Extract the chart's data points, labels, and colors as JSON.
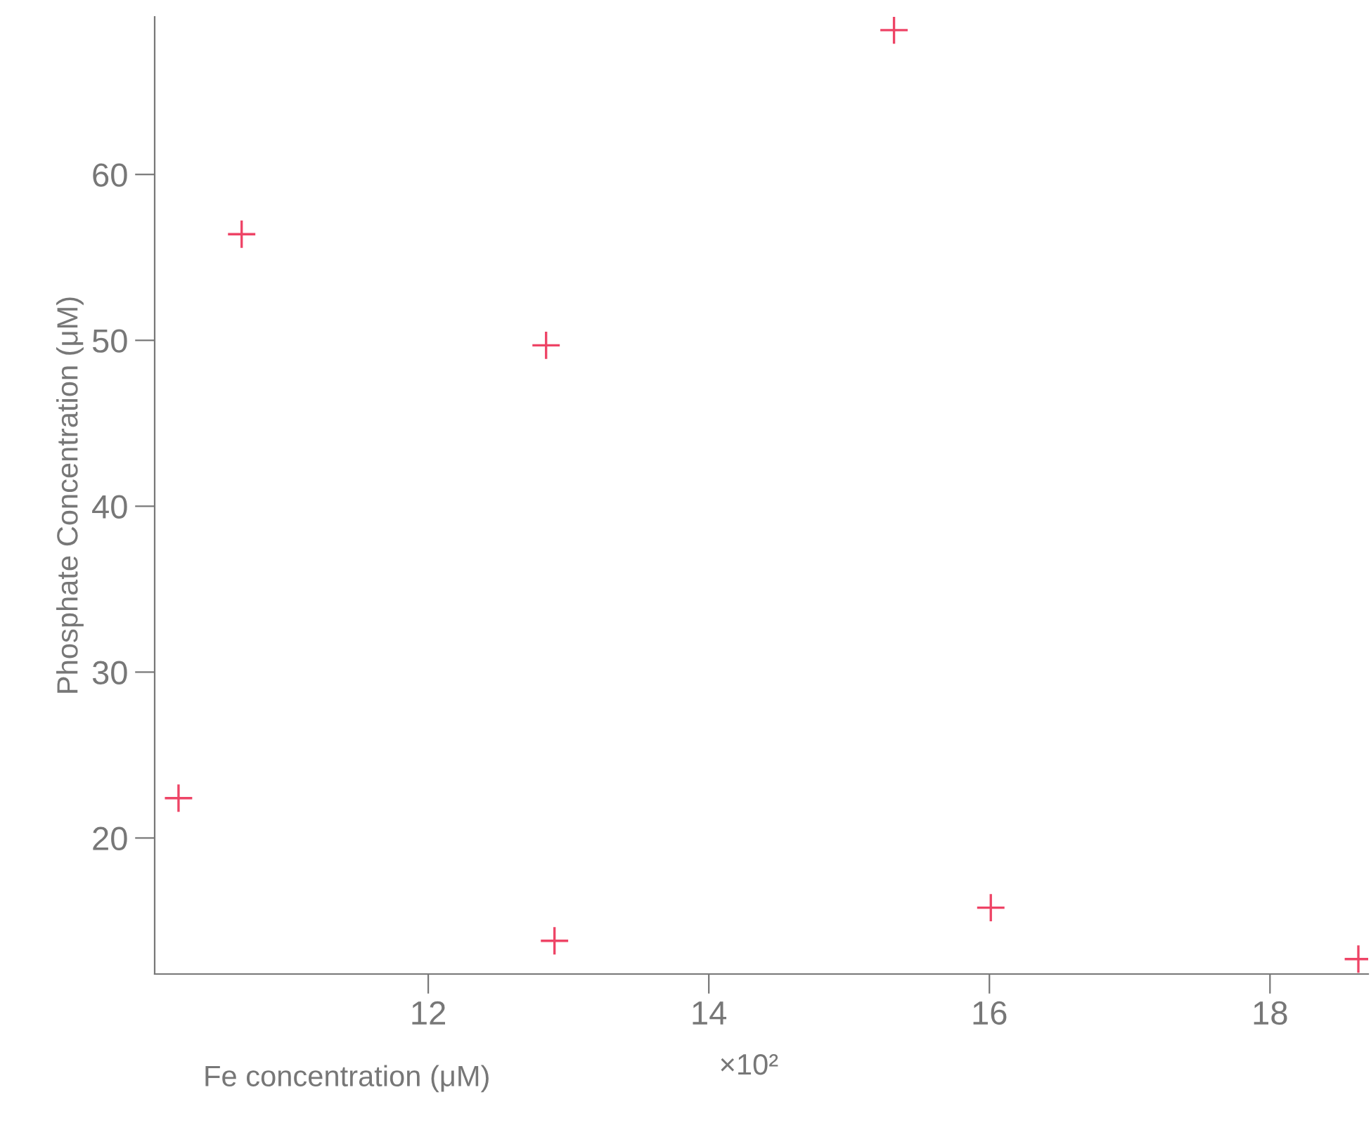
{
  "chart_data": {
    "type": "scatter",
    "xlabel": "Fe concentration (μM)",
    "ylabel": "Phosphate Concentration (μM)",
    "annotations": [
      "×10²"
    ],
    "x": [
      10.22,
      10.67,
      12.84,
      12.9,
      15.32,
      16.01,
      18.63
    ],
    "values": [
      22.4,
      56.4,
      49.7,
      13.8,
      68.7,
      15.8,
      12.7
    ],
    "color": "#ee4466",
    "marker": "cross",
    "xlim": [
      10.05,
      18.7
    ],
    "ylim": [
      11.8,
      69.5
    ],
    "xticks": [
      12,
      14,
      16,
      18
    ],
    "yticks": [
      20,
      30,
      40,
      50,
      60
    ],
    "grid": false,
    "legend": false
  }
}
